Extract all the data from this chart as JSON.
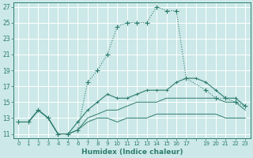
{
  "xlabel": "Humidex (Indice chaleur)",
  "bg_color": "#cce8e8",
  "grid_color": "#ffffff",
  "line_color": "#2e7d6e",
  "xlim": [
    -0.5,
    23.5
  ],
  "ylim": [
    10.5,
    27.5
  ],
  "xticks": [
    0,
    1,
    2,
    3,
    4,
    5,
    6,
    7,
    8,
    9,
    10,
    11,
    12,
    13,
    14,
    15,
    16,
    17,
    18,
    19,
    20,
    21,
    22,
    23
  ],
  "xtick_labels": [
    "0",
    "1",
    "2",
    "3",
    "4",
    "5",
    "6",
    "7",
    "8",
    "9",
    "10",
    "11",
    "12",
    "13",
    "14",
    "15",
    "16",
    "17",
    "",
    "19",
    "20",
    "21",
    "22",
    "23"
  ],
  "yticks": [
    11,
    13,
    15,
    17,
    19,
    21,
    23,
    25,
    27
  ],
  "series1_x": [
    0,
    1,
    2,
    3,
    4,
    5,
    6,
    7,
    8,
    9,
    10,
    11,
    12,
    13,
    14,
    15,
    16,
    17,
    19,
    20,
    21,
    22,
    23
  ],
  "series1_y": [
    12.5,
    12.5,
    14.0,
    13.0,
    11.0,
    11.0,
    11.5,
    17.5,
    19.0,
    21.0,
    24.5,
    25.0,
    25.0,
    25.0,
    27.0,
    26.5,
    26.5,
    18.0,
    16.5,
    15.5,
    15.5,
    15.0,
    14.5
  ],
  "series2_x": [
    0,
    1,
    2,
    3,
    4,
    5,
    6,
    7,
    8,
    9,
    10,
    11,
    12,
    13,
    14,
    15,
    16,
    17,
    18,
    19,
    20,
    21,
    22,
    23
  ],
  "series2_y": [
    12.5,
    12.5,
    14.0,
    13.0,
    11.0,
    11.0,
    12.5,
    14.0,
    15.0,
    16.0,
    15.5,
    15.5,
    16.0,
    16.5,
    16.5,
    16.5,
    17.5,
    18.0,
    18.0,
    17.5,
    16.5,
    15.5,
    15.5,
    14.5
  ],
  "series3_x": [
    0,
    1,
    2,
    3,
    4,
    5,
    6,
    7,
    8,
    9,
    10,
    11,
    12,
    13,
    14,
    15,
    16,
    17,
    18,
    19,
    20,
    21,
    22,
    23
  ],
  "series3_y": [
    12.5,
    12.5,
    14.0,
    13.0,
    11.0,
    11.0,
    11.5,
    13.0,
    13.5,
    14.0,
    14.0,
    14.5,
    15.0,
    15.0,
    15.0,
    15.5,
    15.5,
    15.5,
    15.5,
    15.5,
    15.5,
    15.0,
    15.0,
    14.0
  ],
  "series4_x": [
    0,
    1,
    2,
    3,
    4,
    5,
    6,
    7,
    8,
    9,
    10,
    11,
    12,
    13,
    14,
    15,
    16,
    17,
    18,
    19,
    20,
    21,
    22,
    23
  ],
  "series4_y": [
    12.5,
    12.5,
    14.0,
    13.0,
    11.0,
    11.0,
    11.5,
    12.5,
    13.0,
    13.0,
    12.5,
    13.0,
    13.0,
    13.0,
    13.5,
    13.5,
    13.5,
    13.5,
    13.5,
    13.5,
    13.5,
    13.0,
    13.0,
    13.0
  ]
}
